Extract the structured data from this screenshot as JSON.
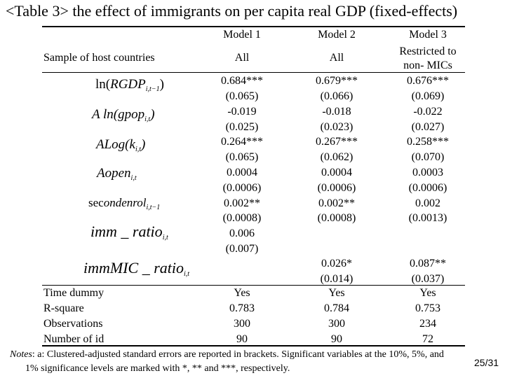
{
  "title": "<Table 3> the effect of immigrants on per capita real GDP (fixed-effects)",
  "sample_label": "Sample of host countries",
  "models": [
    {
      "name": "Model 1",
      "sample": "All"
    },
    {
      "name": "Model 2",
      "sample": "All"
    },
    {
      "name": "Model 3",
      "sample_lines": [
        "Restricted to",
        "non- MICs"
      ]
    }
  ],
  "variables": {
    "lngdp": {
      "pre": "ln(",
      "name": "RGDP",
      "sub": "i,t−1",
      "post": ")"
    },
    "dpop": {
      "pre": "A ln(",
      "name": "gpop",
      "sub": "i,t",
      "post": ")"
    },
    "dlogk": {
      "pre": "ALog(",
      "name": "k",
      "sub": "i,t",
      "post": ")"
    },
    "open": {
      "pre": "Aopen",
      "name": "",
      "sub": "i,t",
      "post": ""
    },
    "second": {
      "pre": "sec",
      "name": "ondenrol",
      "sub": "i,t−1",
      "post": ""
    },
    "imm": {
      "pre": "imm _ ratio",
      "name": "",
      "sub": "i,t",
      "post": ""
    },
    "immmic": {
      "pre": "immMIC _ ratio",
      "name": "",
      "sub": "i,t",
      "post": ""
    }
  },
  "coef": {
    "m1": [
      "0.684***",
      "(0.065)",
      "-0.019",
      "(0.025)",
      "0.264***",
      "(0.065)",
      "0.0004",
      "(0.0006)",
      "0.002**",
      "(0.0008)",
      "0.006",
      "(0.007)"
    ],
    "m2": [
      "0.679***",
      "(0.066)",
      "-0.018",
      "(0.023)",
      "0.267***",
      "(0.062)",
      "0.0004",
      "(0.0006)",
      "0.002**",
      "(0.0008)",
      "0.026*",
      "(0.014)"
    ],
    "m3": [
      "0.676***",
      "(0.069)",
      "-0.022",
      "(0.027)",
      "0.258***",
      "(0.070)",
      "0.0003",
      "(0.0006)",
      "0.002",
      "(0.0013)",
      "0.087**",
      "(0.037)"
    ]
  },
  "stats": {
    "labels": [
      "Time dummy",
      "R-square",
      "Observations",
      "Number of id"
    ],
    "m1": [
      "Yes",
      "0.783",
      "300",
      "90"
    ],
    "m2": [
      "Yes",
      "0.784",
      "300",
      "90"
    ],
    "m3": [
      "Yes",
      "0.753",
      "234",
      "72"
    ]
  },
  "notes": {
    "lead": "Notes",
    "line1": ": a: Clustered-adjusted standard errors are reported in brackets. Significant variables at the 10%, 5%, and",
    "line2": "1% significance levels are marked with *, ** and ***, respectively."
  },
  "page": "25/31"
}
